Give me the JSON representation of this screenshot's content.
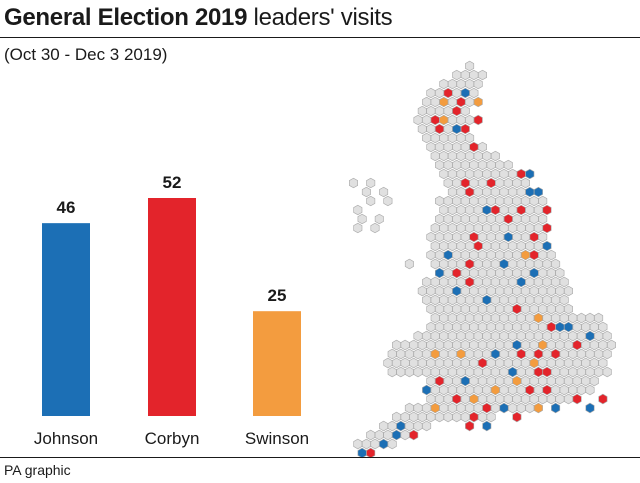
{
  "header": {
    "title_bold": "General Election 2019",
    "title_rest": " leaders' visits",
    "subtitle": "(Oct 30 - Dec 3 2019)"
  },
  "footer": {
    "source": "PA graphic"
  },
  "chart_data": [
    {
      "type": "bar",
      "categories": [
        "Johnson",
        "Corbyn",
        "Swinson"
      ],
      "values": [
        46,
        52,
        25
      ],
      "colors": [
        "#1c6fb5",
        "#e3242b",
        "#f39c3f"
      ],
      "title": "",
      "xlabel": "",
      "ylabel": "",
      "ylim": [
        0,
        52
      ],
      "grid": false,
      "value_labels": true
    },
    {
      "type": "hexmap",
      "title": "",
      "legend": "none",
      "colors": {
        "Johnson": "#1c6fb5",
        "Corbyn": "#e3242b",
        "Swinson": "#f39c3f",
        "not_visited": "#e0e0e0",
        "cell_border": "#a8a8a8"
      }
    }
  ]
}
